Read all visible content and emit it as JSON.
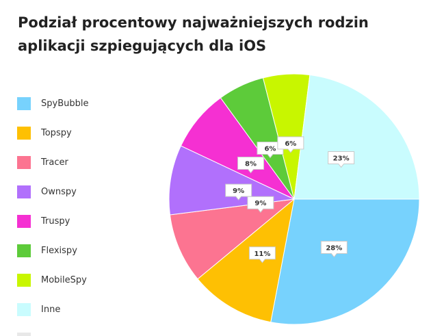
{
  "chart_data": {
    "type": "pie",
    "title_lines": [
      "Podział procentowy najważniejszych rodzin",
      "aplikacji szpiegujących dla iOS"
    ],
    "legend_position": "left",
    "slices": [
      {
        "name": "SpyBubble",
        "value": 28,
        "label": "28%",
        "color": "#77d2fd"
      },
      {
        "name": "Topspy",
        "value": 11,
        "label": "11%",
        "color": "#fec003"
      },
      {
        "name": "Tracer",
        "value": 9,
        "label": "",
        "color": "#fc7491"
      },
      {
        "name": "Ownspy",
        "value": 9,
        "label": "9%",
        "color": "#b170fc"
      },
      {
        "name": "Truspy",
        "value": 8,
        "label": "8%",
        "color": "#f530d2"
      },
      {
        "name": "Flexispy",
        "value": 6,
        "label": "6%",
        "color": "#5dcb3a"
      },
      {
        "name": "MobileSpy",
        "value": 6,
        "label": "6%",
        "color": "#c8f600"
      },
      {
        "name": "Inne",
        "value": 23,
        "label": "23%",
        "color": "#c9fcfe"
      }
    ],
    "extra_labels": [
      "9%"
    ]
  }
}
